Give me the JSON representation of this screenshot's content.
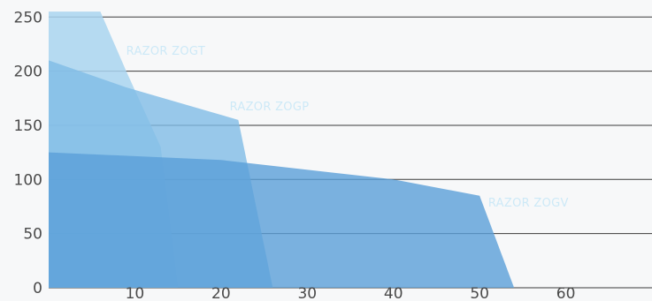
{
  "chart_data": {
    "type": "area",
    "title": "",
    "xlabel": "",
    "ylabel": "",
    "xlim": [
      0,
      70
    ],
    "ylim": [
      0,
      260
    ],
    "x_ticks": [
      10,
      20,
      30,
      40,
      50,
      60
    ],
    "y_ticks": [
      0,
      50,
      100,
      150,
      200,
      250
    ],
    "grid": "horizontal",
    "series": [
      {
        "name": "RAZOR ZOGT",
        "color": "#a9d5f0",
        "points": [
          [
            0,
            255
          ],
          [
            6,
            255
          ],
          [
            9,
            200
          ],
          [
            13,
            130
          ],
          [
            15,
            0
          ],
          [
            0,
            0
          ]
        ]
      },
      {
        "name": "RAZOR ZOGP",
        "color": "#7fbce6",
        "points": [
          [
            0,
            210
          ],
          [
            9,
            185
          ],
          [
            22,
            155
          ],
          [
            26,
            0
          ],
          [
            0,
            0
          ]
        ]
      },
      {
        "name": "RAZOR ZOGV",
        "color": "#5a9fd8",
        "points": [
          [
            0,
            125
          ],
          [
            20,
            118
          ],
          [
            40,
            100
          ],
          [
            50,
            85
          ],
          [
            54,
            0
          ],
          [
            0,
            0
          ]
        ]
      }
    ]
  }
}
